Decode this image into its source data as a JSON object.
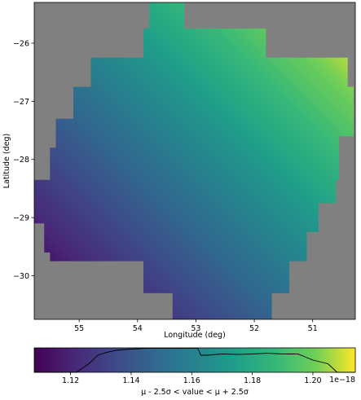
{
  "chart_data": {
    "type": "heatmap",
    "map": {
      "xlabel": "Longitude (deg)",
      "ylabel": "Latitude (deg)",
      "x_axis_inverted": true,
      "xlim": [
        55.77,
        50.27
      ],
      "ylim": [
        -30.75,
        -25.3
      ],
      "x_ticks": [
        55,
        54,
        53,
        52,
        51
      ],
      "y_ticks": [
        -26,
        -27,
        -28,
        -29,
        -30
      ],
      "x_tick_labels": [
        "55",
        "54",
        "53",
        "52",
        "51"
      ],
      "y_tick_labels": [
        "−26",
        "−27",
        "−28",
        "−29",
        "−30"
      ],
      "no_data_color": "#808080",
      "colormap": "viridis",
      "gradient": {
        "low_corner": {
          "lon": 55.5,
          "lat": -30.5
        },
        "high_corner": {
          "lon": 50.5,
          "lat": -25.5
        }
      },
      "footprint": [
        [
          53.8,
          -25.3
        ],
        [
          53.2,
          -25.3
        ],
        [
          53.2,
          -25.75
        ],
        [
          51.8,
          -25.75
        ],
        [
          51.8,
          -26.25
        ],
        [
          50.4,
          -26.25
        ],
        [
          50.4,
          -26.75
        ],
        [
          50.3,
          -26.75
        ],
        [
          50.3,
          -27.6
        ],
        [
          50.55,
          -27.6
        ],
        [
          50.55,
          -28.35
        ],
        [
          50.6,
          -28.35
        ],
        [
          50.6,
          -28.75
        ],
        [
          50.9,
          -28.75
        ],
        [
          50.9,
          -29.25
        ],
        [
          51.1,
          -29.25
        ],
        [
          51.1,
          -29.75
        ],
        [
          51.4,
          -29.75
        ],
        [
          51.4,
          -30.3
        ],
        [
          51.7,
          -30.3
        ],
        [
          51.7,
          -30.75
        ],
        [
          53.4,
          -30.75
        ],
        [
          53.4,
          -30.3
        ],
        [
          53.9,
          -30.3
        ],
        [
          53.9,
          -29.75
        ],
        [
          55.5,
          -29.75
        ],
        [
          55.5,
          -29.6
        ],
        [
          55.6,
          -29.6
        ],
        [
          55.6,
          -29.1
        ],
        [
          55.8,
          -29.1
        ],
        [
          55.8,
          -28.35
        ],
        [
          55.5,
          -28.35
        ],
        [
          55.5,
          -27.8
        ],
        [
          55.4,
          -27.8
        ],
        [
          55.4,
          -27.3
        ],
        [
          55.1,
          -27.3
        ],
        [
          55.1,
          -26.75
        ],
        [
          54.8,
          -26.75
        ],
        [
          54.8,
          -26.25
        ],
        [
          53.9,
          -26.25
        ],
        [
          53.9,
          -25.75
        ],
        [
          53.8,
          -25.75
        ]
      ]
    },
    "colorbar": {
      "xlabel": "μ - 2.5σ < value < μ + 2.5σ",
      "offset_text": "1e−18",
      "xlim": [
        1.108,
        1.214
      ],
      "x_ticks": [
        1.12,
        1.14,
        1.16,
        1.18,
        1.2
      ],
      "x_tick_labels": [
        "1.12",
        "1.14",
        "1.16",
        "1.18",
        "1.20"
      ],
      "histogram": {
        "x": [
          1.108,
          1.122,
          1.126,
          1.129,
          1.132,
          1.135,
          1.14,
          1.145,
          1.15,
          1.155,
          1.16,
          1.162,
          1.163,
          1.165,
          1.17,
          1.175,
          1.18,
          1.185,
          1.19,
          1.195,
          1.2,
          1.205,
          1.208,
          1.214
        ],
        "y": [
          0.0,
          0.0,
          0.35,
          0.7,
          0.82,
          0.9,
          0.95,
          0.98,
          0.98,
          0.98,
          0.98,
          0.98,
          0.7,
          0.7,
          0.75,
          0.73,
          0.75,
          0.78,
          0.75,
          0.75,
          0.5,
          0.35,
          0.0,
          0.0
        ],
        "ylim": [
          0,
          1
        ]
      }
    }
  }
}
